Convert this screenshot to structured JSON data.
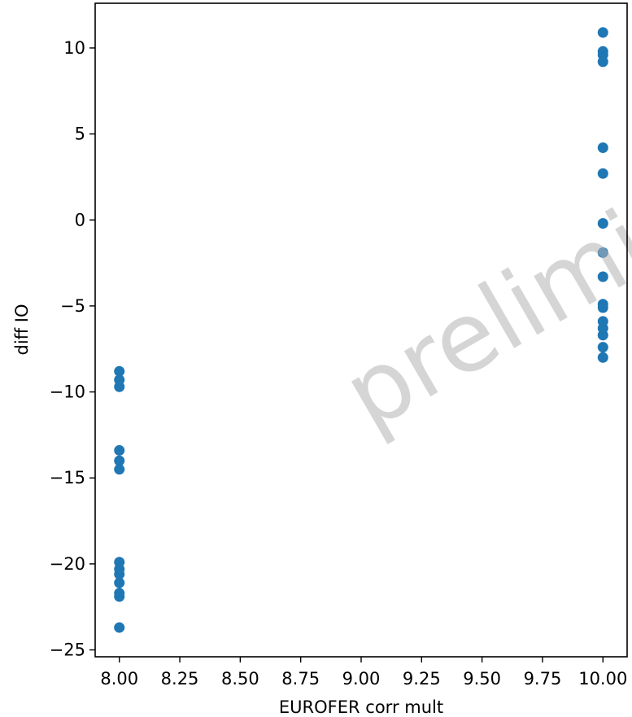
{
  "chart_data": {
    "type": "scatter",
    "title": "",
    "xlabel": "EUROFER corr mult",
    "ylabel": "diff IO",
    "xlim": [
      7.9,
      10.1
    ],
    "ylim": [
      -25.4,
      12.6
    ],
    "xticks": [
      8.0,
      8.25,
      8.5,
      8.75,
      9.0,
      9.25,
      9.5,
      9.75,
      10.0
    ],
    "xtick_labels": [
      "8.00",
      "8.25",
      "8.50",
      "8.75",
      "9.00",
      "9.25",
      "9.50",
      "9.75",
      "10.00"
    ],
    "yticks": [
      10,
      5,
      0,
      -5,
      -10,
      -15,
      -20,
      -25
    ],
    "ytick_labels": [
      "10",
      "5",
      "0",
      "−5",
      "−10",
      "−15",
      "−20",
      "−25"
    ],
    "grid": false,
    "marker_color": "#1f77b4",
    "points": [
      {
        "x": 8.0,
        "y": -8.8
      },
      {
        "x": 8.0,
        "y": -9.3
      },
      {
        "x": 8.0,
        "y": -9.7
      },
      {
        "x": 8.0,
        "y": -13.4
      },
      {
        "x": 8.0,
        "y": -14.0
      },
      {
        "x": 8.0,
        "y": -14.5
      },
      {
        "x": 8.0,
        "y": -19.9
      },
      {
        "x": 8.0,
        "y": -20.3
      },
      {
        "x": 8.0,
        "y": -20.6
      },
      {
        "x": 8.0,
        "y": -21.1
      },
      {
        "x": 8.0,
        "y": -21.7
      },
      {
        "x": 8.0,
        "y": -21.9
      },
      {
        "x": 8.0,
        "y": -23.7
      },
      {
        "x": 10.0,
        "y": 10.9
      },
      {
        "x": 10.0,
        "y": 9.8
      },
      {
        "x": 10.0,
        "y": 9.6
      },
      {
        "x": 10.0,
        "y": 9.2
      },
      {
        "x": 10.0,
        "y": 4.2
      },
      {
        "x": 10.0,
        "y": 2.7
      },
      {
        "x": 10.0,
        "y": -0.2
      },
      {
        "x": 10.0,
        "y": -1.9
      },
      {
        "x": 10.0,
        "y": -3.3
      },
      {
        "x": 10.0,
        "y": -4.9
      },
      {
        "x": 10.0,
        "y": -5.1
      },
      {
        "x": 10.0,
        "y": -5.9
      },
      {
        "x": 10.0,
        "y": -6.3
      },
      {
        "x": 10.0,
        "y": -6.7
      },
      {
        "x": 10.0,
        "y": -7.4
      },
      {
        "x": 10.0,
        "y": -8.0
      }
    ]
  },
  "watermark": {
    "text": "prelimi",
    "color": "#b4b4b4"
  }
}
